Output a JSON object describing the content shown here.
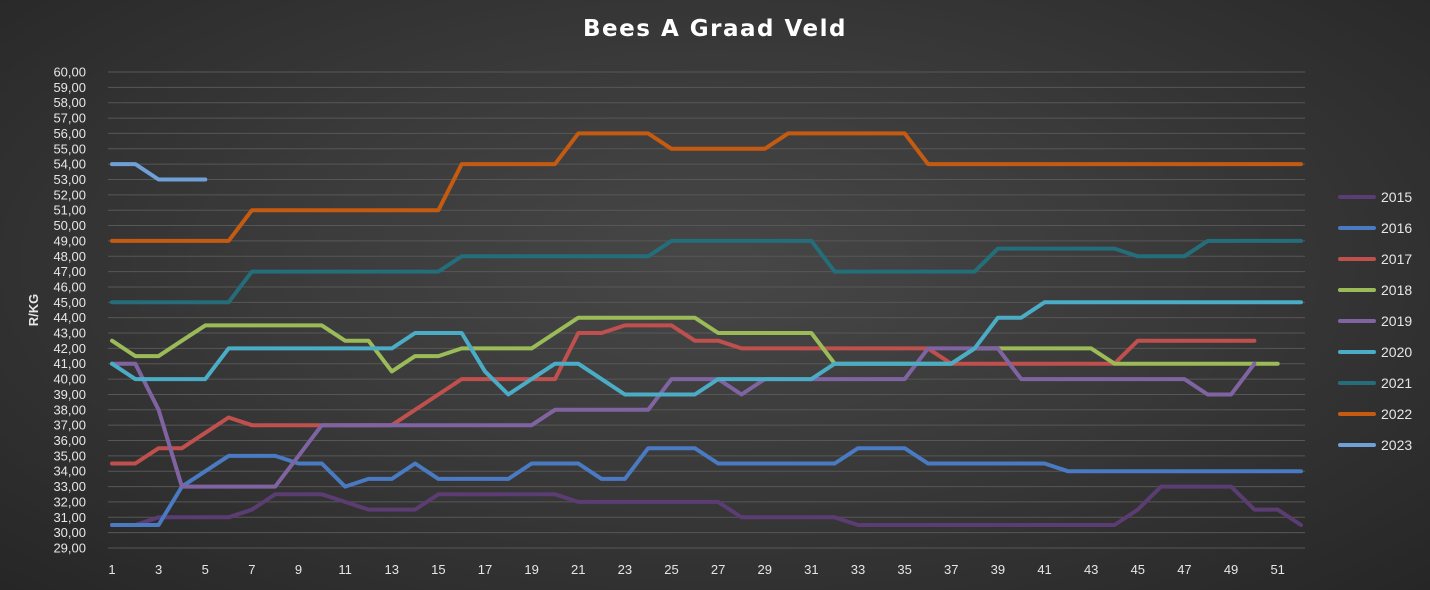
{
  "chart_data": {
    "type": "line",
    "title": "Bees A Graad Veld",
    "ylabel": "R/KG",
    "xlabel": "",
    "ylim": [
      29,
      60
    ],
    "xlim": [
      1,
      52
    ],
    "y_tick_labels": [
      "29,00",
      "30,00",
      "31,00",
      "32,00",
      "33,00",
      "34,00",
      "35,00",
      "36,00",
      "37,00",
      "38,00",
      "39,00",
      "40,00",
      "41,00",
      "42,00",
      "43,00",
      "44,00",
      "45,00",
      "46,00",
      "47,00",
      "48,00",
      "49,00",
      "50,00",
      "51,00",
      "52,00",
      "53,00",
      "54,00",
      "55,00",
      "56,00",
      "57,00",
      "58,00",
      "59,00",
      "60,00"
    ],
    "x_tick_labels": [
      "1",
      "3",
      "5",
      "7",
      "9",
      "11",
      "13",
      "15",
      "17",
      "19",
      "21",
      "23",
      "25",
      "27",
      "29",
      "31",
      "33",
      "35",
      "37",
      "39",
      "41",
      "43",
      "45",
      "47",
      "49",
      "51"
    ],
    "grid": true,
    "legend_position": "right",
    "series": [
      {
        "name": "2015",
        "color": "#5b3c73",
        "x": [
          1,
          2,
          3,
          4,
          5,
          6,
          7,
          8,
          9,
          10,
          11,
          12,
          13,
          14,
          15,
          16,
          17,
          18,
          19,
          20,
          21,
          22,
          23,
          24,
          25,
          26,
          27,
          28,
          29,
          30,
          31,
          32,
          33,
          34,
          35,
          36,
          37,
          38,
          39,
          40,
          41,
          42,
          43,
          44,
          45,
          46,
          47,
          48,
          49,
          50,
          51,
          52
        ],
        "values": [
          30.5,
          30.5,
          31,
          31,
          31,
          31,
          31.5,
          32.5,
          32.5,
          32.5,
          32,
          31.5,
          31.5,
          31.5,
          32.5,
          32.5,
          32.5,
          32.5,
          32.5,
          32.5,
          32,
          32,
          32,
          32,
          32,
          32,
          32,
          31,
          31,
          31,
          31,
          31,
          30.5,
          30.5,
          30.5,
          30.5,
          30.5,
          30.5,
          30.5,
          30.5,
          30.5,
          30.5,
          30.5,
          30.5,
          31.5,
          33,
          33,
          33,
          33,
          31.5,
          31.5,
          30.5
        ]
      },
      {
        "name": "2016",
        "color": "#4a7ac2",
        "x": [
          1,
          2,
          3,
          4,
          5,
          6,
          7,
          8,
          9,
          10,
          11,
          12,
          13,
          14,
          15,
          16,
          17,
          18,
          19,
          20,
          21,
          22,
          23,
          24,
          25,
          26,
          27,
          28,
          29,
          30,
          31,
          32,
          33,
          34,
          35,
          36,
          37,
          38,
          39,
          40,
          41,
          42,
          43,
          44,
          45,
          46,
          47,
          48,
          49,
          50,
          51,
          52
        ],
        "values": [
          30.5,
          30.5,
          30.5,
          33,
          34,
          35,
          35,
          35,
          34.5,
          34.5,
          33,
          33.5,
          33.5,
          34.5,
          33.5,
          33.5,
          33.5,
          33.5,
          34.5,
          34.5,
          34.5,
          33.5,
          33.5,
          35.5,
          35.5,
          35.5,
          34.5,
          34.5,
          34.5,
          34.5,
          34.5,
          34.5,
          35.5,
          35.5,
          35.5,
          34.5,
          34.5,
          34.5,
          34.5,
          34.5,
          34.5,
          34,
          34,
          34,
          34,
          34,
          34,
          34,
          34,
          34,
          34,
          34
        ]
      },
      {
        "name": "2017",
        "color": "#c0504d",
        "x": [
          1,
          2,
          3,
          4,
          5,
          6,
          7,
          8,
          9,
          10,
          11,
          12,
          13,
          14,
          15,
          16,
          17,
          18,
          19,
          20,
          21,
          22,
          23,
          24,
          25,
          26,
          27,
          28,
          29,
          30,
          31,
          32,
          33,
          34,
          35,
          36,
          37,
          38,
          39,
          40,
          41,
          42,
          43,
          44,
          45,
          46,
          47,
          48,
          49,
          50
        ],
        "values": [
          34.5,
          34.5,
          35.5,
          35.5,
          36.5,
          37.5,
          37,
          37,
          37,
          37,
          37,
          37,
          37,
          38,
          39,
          40,
          40,
          40,
          40,
          40,
          43,
          43,
          43.5,
          43.5,
          43.5,
          42.5,
          42.5,
          42,
          42,
          42,
          42,
          42,
          42,
          42,
          42,
          42,
          41,
          41,
          41,
          41,
          41,
          41,
          41,
          41,
          42.5,
          42.5,
          42.5,
          42.5,
          42.5,
          42.5
        ]
      },
      {
        "name": "2018",
        "color": "#9bbb59",
        "x": [
          1,
          2,
          3,
          4,
          5,
          6,
          7,
          8,
          9,
          10,
          11,
          12,
          13,
          14,
          15,
          16,
          17,
          18,
          19,
          20,
          21,
          22,
          23,
          24,
          25,
          26,
          27,
          28,
          29,
          30,
          31,
          32,
          33,
          34,
          35,
          36,
          37,
          38,
          39,
          40,
          41,
          42,
          43,
          44,
          45,
          46,
          47,
          48,
          49,
          50,
          51
        ],
        "values": [
          42.5,
          41.5,
          41.5,
          42.5,
          43.5,
          43.5,
          43.5,
          43.5,
          43.5,
          43.5,
          42.5,
          42.5,
          40.5,
          41.5,
          41.5,
          42,
          42,
          42,
          42,
          43,
          44,
          44,
          44,
          44,
          44,
          44,
          43,
          43,
          43,
          43,
          43,
          41,
          41,
          41,
          41,
          41,
          41,
          42,
          42,
          42,
          42,
          42,
          42,
          41,
          41,
          41,
          41,
          41,
          41,
          41,
          41
        ]
      },
      {
        "name": "2019",
        "color": "#8064a2",
        "x": [
          1,
          2,
          3,
          4,
          5,
          6,
          7,
          8,
          9,
          10,
          11,
          12,
          13,
          14,
          15,
          16,
          17,
          18,
          19,
          20,
          21,
          22,
          23,
          24,
          25,
          26,
          27,
          28,
          29,
          30,
          31,
          32,
          33,
          34,
          35,
          36,
          37,
          38,
          39,
          40,
          41,
          42,
          43,
          44,
          45,
          46,
          47,
          48,
          49,
          50
        ],
        "values": [
          41,
          41,
          38,
          33,
          33,
          33,
          33,
          33,
          35,
          37,
          37,
          37,
          37,
          37,
          37,
          37,
          37,
          37,
          37,
          38,
          38,
          38,
          38,
          38,
          40,
          40,
          40,
          39,
          40,
          40,
          40,
          40,
          40,
          40,
          40,
          42,
          42,
          42,
          42,
          40,
          40,
          40,
          40,
          40,
          40,
          40,
          40,
          39,
          39,
          41
        ]
      },
      {
        "name": "2020",
        "color": "#4bacc6",
        "x": [
          1,
          2,
          3,
          4,
          5,
          6,
          7,
          8,
          9,
          10,
          11,
          12,
          13,
          14,
          15,
          16,
          17,
          18,
          19,
          20,
          21,
          22,
          23,
          24,
          25,
          26,
          27,
          28,
          29,
          30,
          31,
          32,
          33,
          34,
          35,
          36,
          37,
          38,
          39,
          40,
          41,
          42,
          43,
          44,
          45,
          46,
          47,
          48,
          49,
          50,
          51,
          52
        ],
        "values": [
          41,
          40,
          40,
          40,
          40,
          42,
          42,
          42,
          42,
          42,
          42,
          42,
          42,
          43,
          43,
          43,
          40.5,
          39,
          40,
          41,
          41,
          40,
          39,
          39,
          39,
          39,
          40,
          40,
          40,
          40,
          40,
          41,
          41,
          41,
          41,
          41,
          41,
          42,
          44,
          44,
          45,
          45,
          45,
          45,
          45,
          45,
          45,
          45,
          45,
          45,
          45,
          45
        ]
      },
      {
        "name": "2021",
        "color": "#236e7a",
        "x": [
          1,
          2,
          3,
          4,
          5,
          6,
          7,
          8,
          9,
          10,
          11,
          12,
          13,
          14,
          15,
          16,
          17,
          18,
          19,
          20,
          21,
          22,
          23,
          24,
          25,
          26,
          27,
          28,
          29,
          30,
          31,
          32,
          33,
          34,
          35,
          36,
          37,
          38,
          39,
          40,
          41,
          42,
          43,
          44,
          45,
          46,
          47,
          48,
          49,
          50,
          51,
          52
        ],
        "values": [
          45,
          45,
          45,
          45,
          45,
          45,
          47,
          47,
          47,
          47,
          47,
          47,
          47,
          47,
          47,
          48,
          48,
          48,
          48,
          48,
          48,
          48,
          48,
          48,
          49,
          49,
          49,
          49,
          49,
          49,
          49,
          47,
          47,
          47,
          47,
          47,
          47,
          47,
          48.5,
          48.5,
          48.5,
          48.5,
          48.5,
          48.5,
          48,
          48,
          48,
          49,
          49,
          49,
          49,
          49
        ]
      },
      {
        "name": "2022",
        "color": "#c55a11",
        "x": [
          1,
          2,
          3,
          4,
          5,
          6,
          7,
          8,
          9,
          10,
          11,
          12,
          13,
          14,
          15,
          16,
          17,
          18,
          19,
          20,
          21,
          22,
          23,
          24,
          25,
          26,
          27,
          28,
          29,
          30,
          31,
          32,
          33,
          34,
          35,
          36,
          37,
          38,
          39,
          40,
          41,
          42,
          43,
          44,
          45,
          46,
          47,
          48,
          49,
          50,
          51,
          52
        ],
        "values": [
          49,
          49,
          49,
          49,
          49,
          49,
          51,
          51,
          51,
          51,
          51,
          51,
          51,
          51,
          51,
          54,
          54,
          54,
          54,
          54,
          56,
          56,
          56,
          56,
          55,
          55,
          55,
          55,
          55,
          56,
          56,
          56,
          56,
          56,
          56,
          54,
          54,
          54,
          54,
          54,
          54,
          54,
          54,
          54,
          54,
          54,
          54,
          54,
          54,
          54,
          54,
          54
        ]
      },
      {
        "name": "2023",
        "color": "#6fa0d8",
        "x": [
          1,
          2,
          3,
          4,
          5
        ],
        "values": [
          54,
          54,
          53,
          53,
          53
        ]
      }
    ]
  }
}
